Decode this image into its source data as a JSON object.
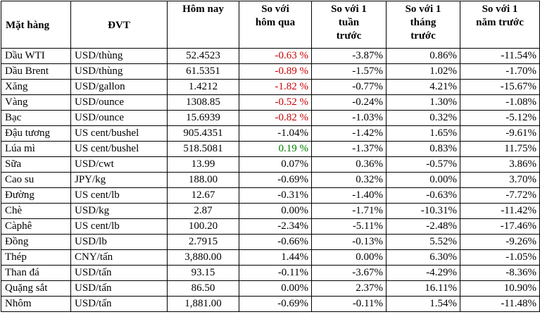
{
  "headers": {
    "item": "Mặt hàng",
    "unit": "ĐVT",
    "today": "Hôm nay",
    "vs_yesterday": [
      "So với",
      "hôm qua"
    ],
    "vs_week": [
      "So với 1",
      "tuần",
      "trước"
    ],
    "vs_month": [
      "So với 1",
      "tháng",
      "trước"
    ],
    "vs_year": [
      "So với 1",
      "năm trước"
    ]
  },
  "rows": [
    {
      "item": "Dầu WTI",
      "unit": "USD/thùng",
      "today": "52.4523",
      "d": "-0.63 %",
      "w": "-3.87%",
      "m": "0.86%",
      "y": "-11.54%",
      "d_color": "red"
    },
    {
      "item": "Dầu Brent",
      "unit": "USD/thùng",
      "today": "61.5351",
      "d": "-0.89 %",
      "w": "-1.57%",
      "m": "1.02%",
      "y": "-1.70%",
      "d_color": "red"
    },
    {
      "item": "Xăng",
      "unit": "USD/gallon",
      "today": "1.4212",
      "d": "-1.82 %",
      "w": "-0.77%",
      "m": "4.21%",
      "y": "-15.67%",
      "d_color": "red"
    },
    {
      "item": "Vàng",
      "unit": "USD/ounce",
      "today": "1308.85",
      "d": "-0.52 %",
      "w": "-0.24%",
      "m": "1.30%",
      "y": "-1.08%",
      "d_color": "red"
    },
    {
      "item": "Bạc",
      "unit": "USD/ounce",
      "today": "15.6939",
      "d": "-0.82 %",
      "w": "-1.03%",
      "m": "0.32%",
      "y": "-5.12%",
      "d_color": "red"
    },
    {
      "item": "Đậu tương",
      "unit": "US cent/bushel",
      "today": "905.4351",
      "d": "-1.04%",
      "w": "-1.42%",
      "m": "1.65%",
      "y": "-9.61%",
      "d_color": "black"
    },
    {
      "item": "Lúa mì",
      "unit": "US cent/bushel",
      "today": "518.5081",
      "d": "0.19 %",
      "w": "-1.37%",
      "m": "0.83%",
      "y": "11.75%",
      "d_color": "green"
    },
    {
      "item": "Sữa",
      "unit": "USD/cwt",
      "today": "13.99",
      "d": "0.07%",
      "w": "0.36%",
      "m": "-0.57%",
      "y": "3.86%",
      "d_color": "black"
    },
    {
      "item": "Cao su",
      "unit": "JPY/kg",
      "today": "188.00",
      "d": "-0.69%",
      "w": "0.32%",
      "m": "0.00%",
      "y": "3.70%",
      "d_color": "black"
    },
    {
      "item": "Đường",
      "unit": "US cent/lb",
      "today": "12.67",
      "d": "-0.31%",
      "w": "-1.40%",
      "m": "-0.63%",
      "y": "-7.72%",
      "d_color": "black"
    },
    {
      "item": "Chè",
      "unit": "USD/kg",
      "today": "2.87",
      "d": "0.00%",
      "w": "-1.71%",
      "m": "-10.31%",
      "y": "-11.42%",
      "d_color": "black"
    },
    {
      "item": "Càphê",
      "unit": "US cent/lb",
      "today": "100.20",
      "d": "-2.34%",
      "w": "-5.11%",
      "m": "-2.48%",
      "y": "-17.46%",
      "d_color": "black"
    },
    {
      "item": "Đồng",
      "unit": "USD/lb",
      "today": "2.7915",
      "d": "-0.66%",
      "w": "-0.13%",
      "m": "5.52%",
      "y": "-9.26%",
      "d_color": "black"
    },
    {
      "item": "Thép",
      "unit": "CNY/tấn",
      "today": "3,880.00",
      "d": "1.44%",
      "w": "0.00%",
      "m": "6.30%",
      "y": "-1.05%",
      "d_color": "black"
    },
    {
      "item": "Than đá",
      "unit": "USD/tấn",
      "today": "93.15",
      "d": "-0.11%",
      "w": "-3.67%",
      "m": "-4.29%",
      "y": "-8.36%",
      "d_color": "black"
    },
    {
      "item": "Quặng sắt",
      "unit": "USD/tấn",
      "today": "86.50",
      "d": "0.00%",
      "w": "2.37%",
      "m": "16.11%",
      "y": "10.90%",
      "d_color": "black"
    },
    {
      "item": "Nhôm",
      "unit": "USD/tấn",
      "today": "1,881.00",
      "d": "-0.69%",
      "w": "-0.11%",
      "m": "1.54%",
      "y": "-11.48%",
      "d_color": "black"
    }
  ]
}
